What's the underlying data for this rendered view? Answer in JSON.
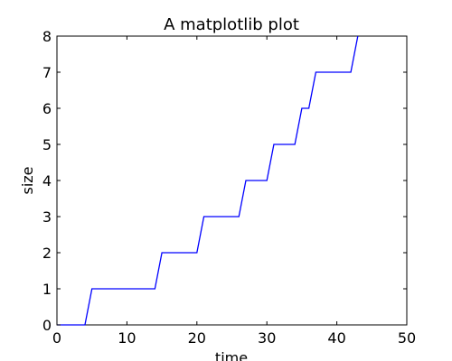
{
  "chart_data": {
    "type": "line",
    "title": "A matplotlib plot",
    "xlabel": "time",
    "ylabel": "size",
    "xlim": [
      0,
      50
    ],
    "ylim": [
      0,
      8
    ],
    "xticks": [
      0,
      10,
      20,
      30,
      40,
      50
    ],
    "yticks": [
      0,
      1,
      2,
      3,
      4,
      5,
      6,
      7,
      8
    ],
    "grid": false,
    "legend": "none",
    "series": [
      {
        "color": "#0000ff",
        "x": [
          0,
          4,
          5,
          14,
          15,
          20,
          21,
          26,
          27,
          30,
          31,
          34,
          35,
          36,
          37,
          42,
          43
        ],
        "y": [
          0,
          0,
          1,
          1,
          2,
          2,
          3,
          3,
          4,
          4,
          5,
          5,
          6,
          6,
          7,
          7,
          8
        ]
      }
    ]
  }
}
